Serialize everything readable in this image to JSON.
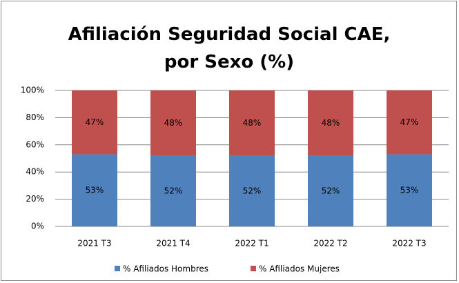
{
  "chart_data": {
    "type": "stacked_bar",
    "title": "Afiliación Seguridad Social CAE, por Sexo (%)",
    "categories": [
      "2021 T3",
      "2021 T4",
      "2022 T1",
      "2022 T2",
      "2022 T3"
    ],
    "series": [
      {
        "name": "% Afiliados Hombres",
        "color": "#4f81bd",
        "values": [
          53,
          52,
          52,
          52,
          53
        ],
        "value_labels": [
          "53%",
          "52%",
          "52%",
          "52%",
          "53%"
        ]
      },
      {
        "name": "% Afiliados Mujeres",
        "color": "#c0504d",
        "values": [
          47,
          48,
          48,
          48,
          47
        ],
        "value_labels": [
          "47%",
          "48%",
          "48%",
          "48%",
          "47%"
        ]
      }
    ],
    "ylim": [
      0,
      100
    ],
    "yticks": [
      {
        "value": 0,
        "label": "0%"
      },
      {
        "value": 20,
        "label": "20%"
      },
      {
        "value": 40,
        "label": "40%"
      },
      {
        "value": 60,
        "label": "60%"
      },
      {
        "value": 80,
        "label": "80%"
      },
      {
        "value": 100,
        "label": "100%"
      }
    ],
    "grid": true,
    "legend": "bottom"
  }
}
